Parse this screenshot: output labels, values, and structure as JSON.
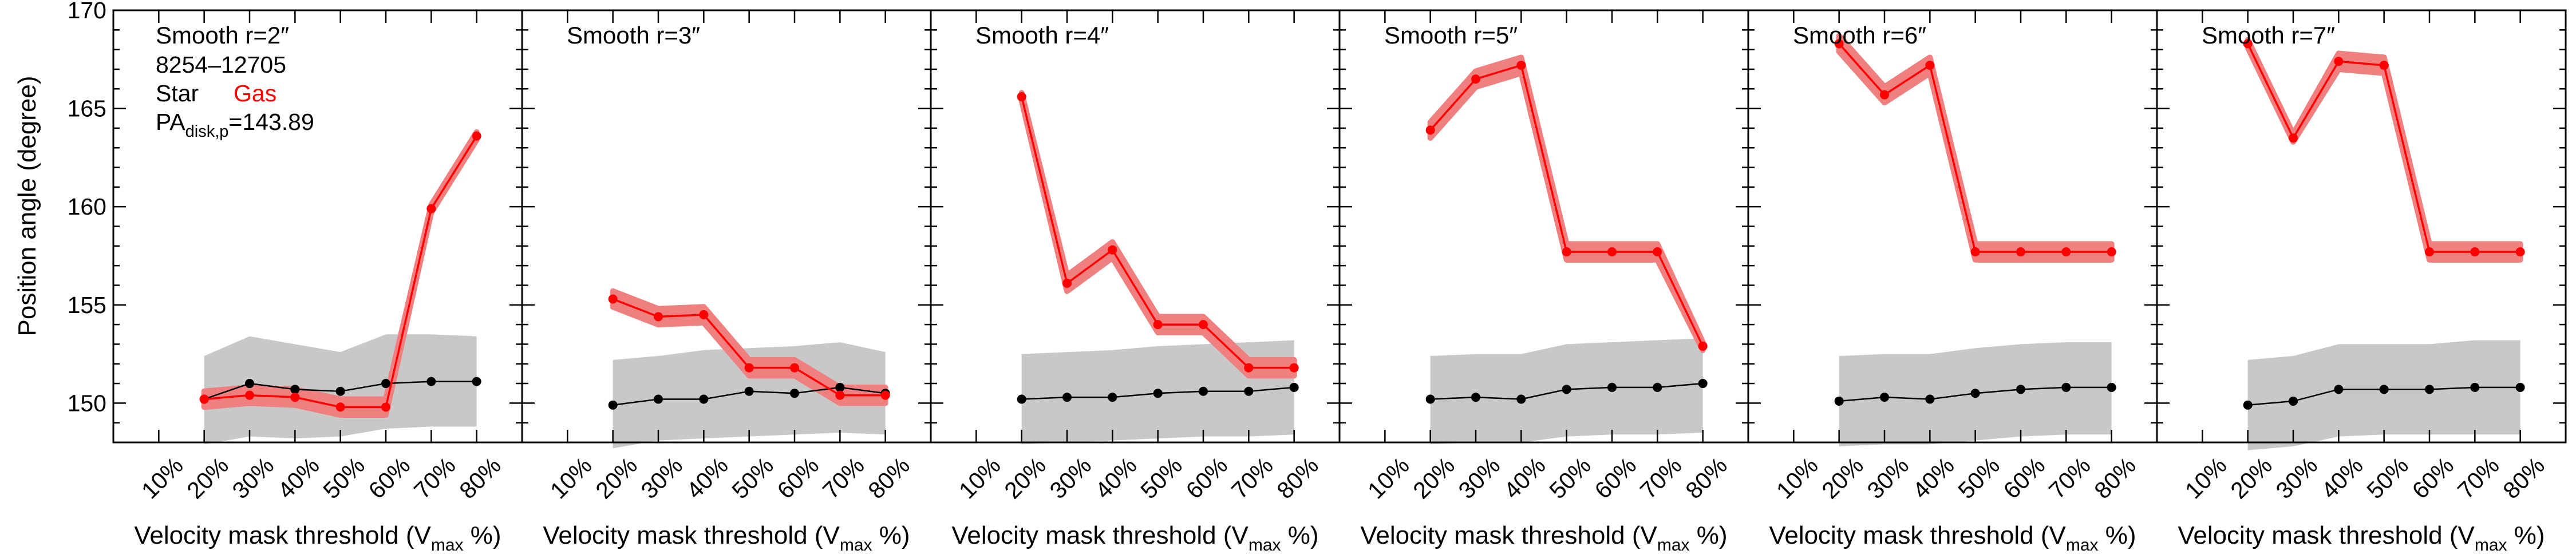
{
  "figure": {
    "ylabel": "Position angle (degree)",
    "xlabel_main": "Velocity mask threshold (V",
    "xlabel_sub": "max",
    "xlabel_tail": " %)",
    "legend": {
      "galaxy_id": "8254–12705",
      "star_label": "Star",
      "gas_label": "Gas",
      "pa_prefix": "PA",
      "pa_sub": "disk,p",
      "pa_value": "=143.89"
    },
    "colors": {
      "gas": "#ff0000",
      "gas_band": "#f08080",
      "star": "#000000",
      "star_band": "#c8c8c8",
      "axis": "#000000"
    }
  },
  "chart_data": [
    {
      "type": "line",
      "title": "Smooth r=2″",
      "categories": [
        "10%",
        "20%",
        "30%",
        "40%",
        "50%",
        "60%",
        "70%",
        "80%"
      ],
      "ylim": [
        148,
        170
      ],
      "yticks": [
        150,
        155,
        160,
        165,
        170
      ],
      "series": [
        {
          "name": "Gas",
          "x": [
            "20%",
            "30%",
            "40%",
            "50%",
            "60%",
            "70%",
            "80%"
          ],
          "values": [
            150.2,
            150.4,
            150.3,
            149.8,
            149.8,
            159.9,
            163.6
          ],
          "band": [
            0.4,
            0.4,
            0.4,
            0.4,
            0.4,
            0.2,
            0.2
          ]
        },
        {
          "name": "Star",
          "x": [
            "20%",
            "30%",
            "40%",
            "50%",
            "60%",
            "70%",
            "80%"
          ],
          "values": [
            150.2,
            151.0,
            150.7,
            150.6,
            151.0,
            151.1,
            151.1
          ],
          "band_upper": [
            152.4,
            153.4,
            153.0,
            152.6,
            153.5,
            153.5,
            153.4
          ],
          "band_lower": [
            147.9,
            148.3,
            148.2,
            148.3,
            148.7,
            148.8,
            148.8
          ]
        }
      ]
    },
    {
      "type": "line",
      "title": "Smooth r=3″",
      "categories": [
        "10%",
        "20%",
        "30%",
        "40%",
        "50%",
        "60%",
        "70%",
        "80%"
      ],
      "ylim": [
        148,
        170
      ],
      "yticks": [
        150,
        155,
        160,
        165,
        170
      ],
      "series": [
        {
          "name": "Gas",
          "x": [
            "20%",
            "30%",
            "40%",
            "50%",
            "60%",
            "70%",
            "80%"
          ],
          "values": [
            155.3,
            154.4,
            154.5,
            151.8,
            151.8,
            150.4,
            150.4
          ],
          "band": [
            0.4,
            0.4,
            0.4,
            0.4,
            0.4,
            0.4,
            0.4
          ]
        },
        {
          "name": "Star",
          "x": [
            "20%",
            "30%",
            "40%",
            "50%",
            "60%",
            "70%",
            "80%"
          ],
          "values": [
            149.9,
            150.2,
            150.2,
            150.6,
            150.5,
            150.8,
            150.5
          ],
          "band_upper": [
            152.2,
            152.4,
            152.7,
            152.8,
            152.9,
            153.1,
            152.6
          ],
          "band_lower": [
            147.7,
            148.1,
            148.2,
            148.3,
            148.4,
            148.5,
            148.4
          ]
        }
      ]
    },
    {
      "type": "line",
      "title": "Smooth r=4″",
      "categories": [
        "10%",
        "20%",
        "30%",
        "40%",
        "50%",
        "60%",
        "70%",
        "80%"
      ],
      "ylim": [
        148,
        170
      ],
      "yticks": [
        150,
        155,
        160,
        165,
        170
      ],
      "series": [
        {
          "name": "Gas",
          "x": [
            "20%",
            "30%",
            "40%",
            "50%",
            "60%",
            "70%",
            "80%"
          ],
          "values": [
            165.6,
            156.1,
            157.8,
            154.0,
            154.0,
            151.8,
            151.8
          ],
          "band": [
            0.2,
            0.4,
            0.4,
            0.4,
            0.4,
            0.4,
            0.4
          ]
        },
        {
          "name": "Star",
          "x": [
            "20%",
            "30%",
            "40%",
            "50%",
            "60%",
            "70%",
            "80%"
          ],
          "values": [
            150.2,
            150.3,
            150.3,
            150.5,
            150.6,
            150.6,
            150.8
          ],
          "band_upper": [
            152.5,
            152.6,
            152.7,
            152.9,
            153.0,
            153.1,
            153.2
          ],
          "band_lower": [
            147.9,
            148.0,
            148.1,
            148.2,
            148.3,
            148.3,
            148.4
          ]
        }
      ]
    },
    {
      "type": "line",
      "title": "Smooth r=5″",
      "categories": [
        "10%",
        "20%",
        "30%",
        "40%",
        "50%",
        "60%",
        "70%",
        "80%"
      ],
      "ylim": [
        148,
        170
      ],
      "yticks": [
        150,
        155,
        160,
        165,
        170
      ],
      "series": [
        {
          "name": "Gas",
          "x": [
            "20%",
            "30%",
            "40%",
            "50%",
            "60%",
            "70%",
            "80%"
          ],
          "values": [
            163.9,
            166.5,
            167.2,
            157.7,
            157.7,
            157.7,
            152.9
          ],
          "band": [
            0.4,
            0.4,
            0.4,
            0.4,
            0.4,
            0.4,
            0.2
          ]
        },
        {
          "name": "Star",
          "x": [
            "20%",
            "30%",
            "40%",
            "50%",
            "60%",
            "70%",
            "80%"
          ],
          "values": [
            150.2,
            150.3,
            150.2,
            150.7,
            150.8,
            150.8,
            151.0
          ],
          "band_upper": [
            152.4,
            152.5,
            152.5,
            153.0,
            153.1,
            153.2,
            153.3
          ],
          "band_lower": [
            147.9,
            148.0,
            148.0,
            148.3,
            148.4,
            148.4,
            148.5
          ]
        }
      ]
    },
    {
      "type": "line",
      "title": "Smooth r=6″",
      "categories": [
        "10%",
        "20%",
        "30%",
        "40%",
        "50%",
        "60%",
        "70%",
        "80%"
      ],
      "ylim": [
        148,
        170
      ],
      "yticks": [
        150,
        155,
        160,
        165,
        170
      ],
      "series": [
        {
          "name": "Gas",
          "x": [
            "20%",
            "30%",
            "40%",
            "50%",
            "60%",
            "70%",
            "80%"
          ],
          "values": [
            168.3,
            165.7,
            167.2,
            157.7,
            157.7,
            157.7,
            157.7
          ],
          "band": [
            0.4,
            0.4,
            0.4,
            0.4,
            0.4,
            0.4,
            0.4
          ]
        },
        {
          "name": "Star",
          "x": [
            "20%",
            "30%",
            "40%",
            "50%",
            "60%",
            "70%",
            "80%"
          ],
          "values": [
            150.1,
            150.3,
            150.2,
            150.5,
            150.7,
            150.8,
            150.8
          ],
          "band_upper": [
            152.4,
            152.5,
            152.5,
            152.8,
            153.0,
            153.1,
            153.1
          ],
          "band_lower": [
            147.8,
            147.9,
            147.9,
            148.1,
            148.3,
            148.4,
            148.4
          ]
        }
      ]
    },
    {
      "type": "line",
      "title": "Smooth r=7″",
      "categories": [
        "10%",
        "20%",
        "30%",
        "40%",
        "50%",
        "60%",
        "70%",
        "80%"
      ],
      "ylim": [
        148,
        170
      ],
      "yticks": [
        150,
        155,
        160,
        165,
        170
      ],
      "series": [
        {
          "name": "Gas",
          "x": [
            "20%",
            "30%",
            "40%",
            "50%",
            "60%",
            "70%",
            "80%"
          ],
          "values": [
            168.3,
            163.5,
            167.4,
            167.2,
            157.7,
            157.7,
            157.7
          ],
          "band": [
            0.2,
            0.2,
            0.4,
            0.4,
            0.4,
            0.4,
            0.4
          ]
        },
        {
          "name": "Star",
          "x": [
            "20%",
            "30%",
            "40%",
            "50%",
            "60%",
            "70%",
            "80%"
          ],
          "values": [
            149.9,
            150.1,
            150.7,
            150.7,
            150.7,
            150.8,
            150.8
          ],
          "band_upper": [
            152.2,
            152.4,
            153.0,
            153.0,
            153.0,
            153.2,
            153.2
          ],
          "band_lower": [
            147.6,
            147.8,
            148.3,
            148.4,
            148.4,
            148.4,
            148.4
          ]
        }
      ]
    }
  ]
}
